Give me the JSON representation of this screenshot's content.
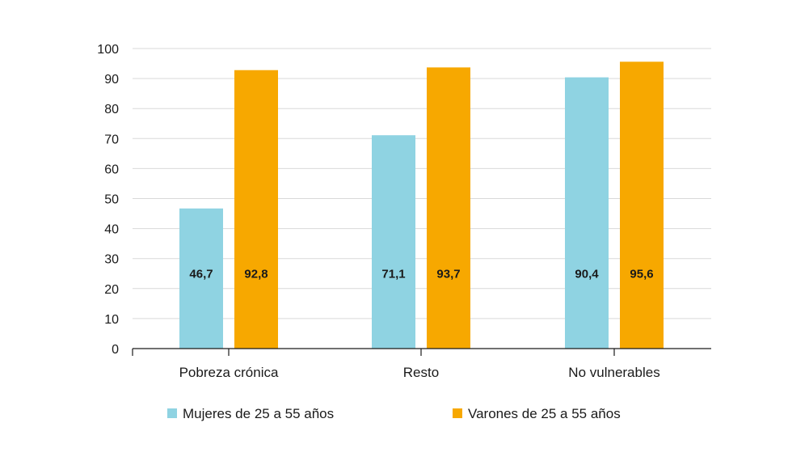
{
  "chart_data": {
    "type": "bar",
    "title": "",
    "xlabel": "",
    "ylabel": "",
    "categories": [
      "Pobreza crónica",
      "Resto",
      "No vulnerables"
    ],
    "series": [
      {
        "name": "Mujeres de 25 a 55 años",
        "values": [
          46.7,
          71.1,
          90.4
        ],
        "labels": [
          "46,7",
          "71,1",
          "90,4"
        ],
        "color": "#8fd3e2"
      },
      {
        "name": "Varones de 25 a 55 años",
        "values": [
          92.8,
          93.7,
          95.6
        ],
        "labels": [
          "92,8",
          "93,7",
          "95,6"
        ],
        "color": "#f7a800"
      }
    ],
    "ylim": [
      0,
      100
    ],
    "yticks": [
      "0",
      "10",
      "20",
      "30",
      "40",
      "50",
      "60",
      "70",
      "80",
      "90",
      "100"
    ],
    "ytick_values": [
      0,
      10,
      20,
      30,
      40,
      50,
      60,
      70,
      80,
      90,
      100
    ],
    "grid": true,
    "legend": "bottom",
    "gridline_color": "#d9d9d9",
    "axis_color": "#1a1a1a"
  }
}
